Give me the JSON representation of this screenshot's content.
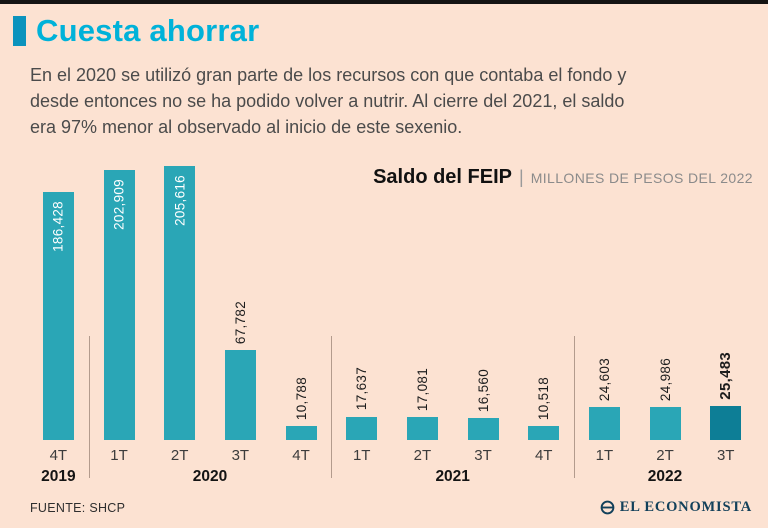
{
  "header": {
    "title": "Cuesta ahorrar",
    "description_lines": [
      "En el 2020 se utilizó gran parte de los recursos con que contaba el fondo y",
      "desde entonces no se ha podido volver a nutrir. Al cierre del 2021, el saldo",
      "era 97% menor al observado al inicio de este sexenio."
    ]
  },
  "chart_header": {
    "title": "Saldo del FEIP",
    "separator": "|",
    "subtitle": "MILLONES DE PESOS DEL 2022"
  },
  "chart_data": {
    "type": "bar",
    "title": "Saldo del FEIP",
    "subtitle": "Millones de pesos del 2022",
    "categories": [
      "4T",
      "1T",
      "2T",
      "3T",
      "4T",
      "1T",
      "2T",
      "3T",
      "4T",
      "1T",
      "2T",
      "3T"
    ],
    "values": [
      186428,
      202909,
      205616,
      67782,
      10788,
      17637,
      17081,
      16560,
      10518,
      24603,
      24986,
      25483
    ],
    "value_labels": [
      "186,428",
      "202,909",
      "205,616",
      "67,782",
      "10,788",
      "17,637",
      "17,081",
      "16,560",
      "10,518",
      "24,603",
      "24,986",
      "25,483"
    ],
    "label_inside": [
      true,
      true,
      true,
      false,
      false,
      false,
      false,
      false,
      false,
      false,
      false,
      false
    ],
    "year_groups": [
      {
        "year": "2019",
        "span": 1
      },
      {
        "year": "2020",
        "span": 4
      },
      {
        "year": "2021",
        "span": 4
      },
      {
        "year": "2022",
        "span": 3
      }
    ],
    "xlabel": "",
    "ylabel": "Millones de pesos del 2022",
    "ylim": [
      0,
      205616
    ],
    "grid": false,
    "legend": "none",
    "colors": {
      "bar": "#2aa6b6",
      "bar_highlight": "#0d7e96",
      "title_accent": "#00b2d9",
      "background": "#fce2d2"
    }
  },
  "footer": {
    "source": "FUENTE: SHCP",
    "brand": "EL ECONOMISTA"
  }
}
